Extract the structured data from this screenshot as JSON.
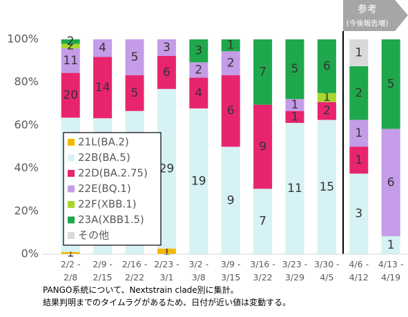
{
  "chart_data": {
    "type": "bar",
    "stacking": "percent",
    "categories": [
      "2/2 -\n2/8",
      "2/9 -\n2/15",
      "2/16 -\n2/22",
      "2/23 -\n3/1",
      "3/2 -\n3/8",
      "3/9 -\n3/15",
      "3/16 -\n3/22",
      "3/23 -\n3/29",
      "3/30 -\n4/5",
      "4/6 -\n4/12",
      "4/13 -\n4/19"
    ],
    "series": [
      {
        "name": "21L(BA.2)",
        "color": "#f5b800",
        "values": [
          1,
          null,
          null,
          1,
          null,
          null,
          null,
          null,
          null,
          null,
          null
        ]
      },
      {
        "name": "22B(BA.5)",
        "color": "#d6f2f5",
        "values": [
          60,
          31,
          20,
          29,
          19,
          9,
          7,
          11,
          15,
          3,
          1
        ]
      },
      {
        "name": "22D(BA.2.75)",
        "color": "#e8246f",
        "values": [
          20,
          14,
          5,
          6,
          4,
          6,
          9,
          1,
          2,
          1,
          null
        ]
      },
      {
        "name": "22E(BQ.1)",
        "color": "#c49ce8",
        "values": [
          11,
          4,
          5,
          3,
          2,
          2,
          null,
          1,
          null,
          1,
          6
        ]
      },
      {
        "name": "22F(XBB.1)",
        "color": "#a8d62c",
        "values": [
          2,
          null,
          null,
          null,
          null,
          null,
          null,
          null,
          1,
          null,
          null
        ]
      },
      {
        "name": "23A(XBB1.5)",
        "color": "#1fa84b",
        "values": [
          2,
          null,
          null,
          null,
          3,
          1,
          7,
          5,
          6,
          2,
          5
        ]
      },
      {
        "name": "その他",
        "color": "#d9d9d9",
        "values": [
          null,
          null,
          null,
          null,
          null,
          null,
          null,
          null,
          null,
          1,
          null
        ]
      }
    ],
    "ylim": [
      0,
      100
    ],
    "yticks": [
      {
        "value": 0,
        "label": "0%"
      },
      {
        "value": 20,
        "label": "20%"
      },
      {
        "value": 40,
        "label": "40%"
      },
      {
        "value": 60,
        "label": "60%"
      },
      {
        "value": 80,
        "label": "80%"
      },
      {
        "value": 100,
        "label": "100%"
      }
    ],
    "legend": "left",
    "annotation": {
      "title": "参考",
      "subtitle": "(今後報告増)"
    },
    "notes": [
      "PANGO系統について、Nextstrain clade別に集計。",
      "結果判明までのタイムラグがあるため、日付が近い値は変動する。"
    ]
  }
}
